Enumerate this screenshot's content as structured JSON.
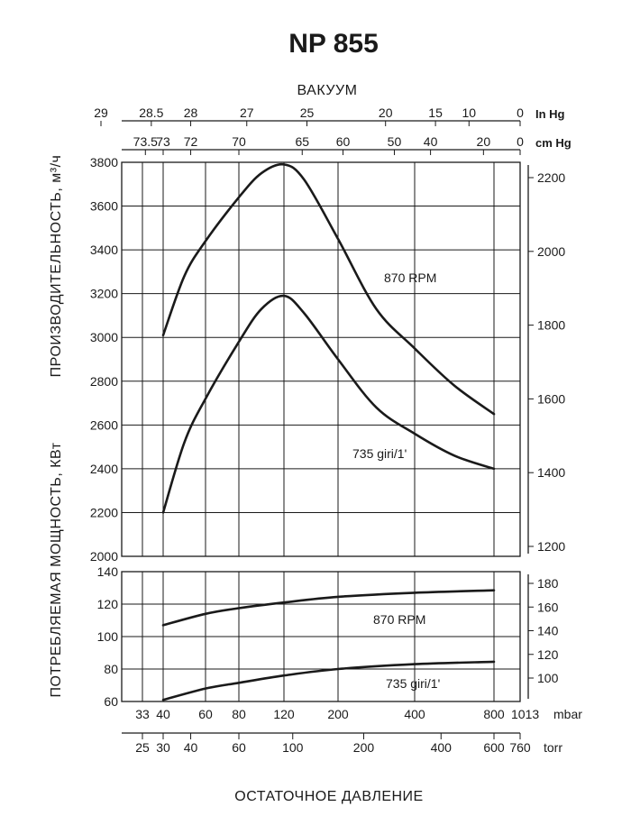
{
  "chart_data": [
    {
      "type": "line",
      "panel": "capacity",
      "title": "NP 855",
      "top_label": "ВАКУУМ",
      "ylabel": "ПРОИЗВОДИТЕЛЬНОСТЬ, м³/ч",
      "ylim": [
        2000,
        3800
      ],
      "yticks": [
        2000,
        2200,
        2400,
        2600,
        2800,
        3000,
        3200,
        3400,
        3600,
        3800
      ],
      "y2ticks": [
        "1200",
        "1400",
        "1600",
        "1800",
        "2000",
        "2200"
      ],
      "y2_values": [
        1200,
        1400,
        1600,
        1800,
        2000,
        2200
      ],
      "vacuum_inhg": {
        "unit": "In Hg",
        "ticks": [
          {
            "label": "29",
            "mbar": 19
          },
          {
            "label": "28.5",
            "mbar": 36
          },
          {
            "label": "28",
            "mbar": 53
          },
          {
            "label": "27",
            "mbar": 87
          },
          {
            "label": "25",
            "mbar": 154
          },
          {
            "label": "20",
            "mbar": 324
          },
          {
            "label": "15",
            "mbar": 505
          },
          {
            "label": "10",
            "mbar": 674
          },
          {
            "label": "0",
            "mbar": 1013
          }
        ]
      },
      "vacuum_cmhg": {
        "unit": "cm Hg",
        "ticks": [
          {
            "label": "73.5",
            "mbar": 34
          },
          {
            "label": "73",
            "mbar": 40
          },
          {
            "label": "72",
            "mbar": 53
          },
          {
            "label": "70",
            "mbar": 80
          },
          {
            "label": "65",
            "mbar": 147
          },
          {
            "label": "60",
            "mbar": 213
          },
          {
            "label": "50",
            "mbar": 347
          },
          {
            "label": "40",
            "mbar": 480
          },
          {
            "label": "20",
            "mbar": 747
          },
          {
            "label": "0",
            "mbar": 1013
          }
        ]
      },
      "gridlines_mbar": [
        33,
        40,
        60,
        80,
        120,
        200,
        400,
        800
      ],
      "series": [
        {
          "name": "870 RPM",
          "x": [
            40,
            50,
            60,
            80,
            100,
            120,
            150,
            200,
            300,
            400,
            600,
            800
          ],
          "values": [
            3010,
            3280,
            3440,
            3640,
            3750,
            3790,
            3720,
            3450,
            3130,
            2950,
            2780,
            2650
          ]
        },
        {
          "name": "735 giri/1'",
          "x": [
            40,
            50,
            60,
            80,
            100,
            120,
            150,
            200,
            300,
            400,
            600,
            800
          ],
          "values": [
            2200,
            2520,
            2720,
            2980,
            3130,
            3190,
            3110,
            2900,
            2680,
            2560,
            2460,
            2400
          ]
        }
      ]
    },
    {
      "type": "line",
      "panel": "power",
      "ylabel": "ПОТРЕБЛЯЕМАЯ МОЩНОСТЬ, КВт",
      "ylim": [
        60,
        140
      ],
      "yticks": [
        60,
        80,
        100,
        120,
        140
      ],
      "y2ticks": [
        "100",
        "120",
        "140",
        "160",
        "180"
      ],
      "y2_values": [
        100,
        120,
        140,
        160,
        180
      ],
      "x_mbar": {
        "unit": "mbar",
        "ticks": [
          {
            "label": "33",
            "mbar": 33
          },
          {
            "label": "40",
            "mbar": 40
          },
          {
            "label": "60",
            "mbar": 60
          },
          {
            "label": "80",
            "mbar": 80
          },
          {
            "label": "120",
            "mbar": 120
          },
          {
            "label": "200",
            "mbar": 200
          },
          {
            "label": "400",
            "mbar": 400
          },
          {
            "label": "800",
            "mbar": 800
          },
          {
            "label": "1013",
            "mbar": 1013
          }
        ]
      },
      "x_torr": {
        "unit": "torr",
        "ticks": [
          {
            "label": "25",
            "mbar": 33
          },
          {
            "label": "30",
            "mbar": 40
          },
          {
            "label": "40",
            "mbar": 53
          },
          {
            "label": "60",
            "mbar": 80
          },
          {
            "label": "100",
            "mbar": 133
          },
          {
            "label": "200",
            "mbar": 267
          },
          {
            "label": "400",
            "mbar": 533
          },
          {
            "label": "600",
            "mbar": 800
          },
          {
            "label": "760",
            "mbar": 1013
          }
        ]
      },
      "xlabel": "ОСТАТОЧНОЕ ДАВЛЕНИЕ",
      "gridlines_mbar": [
        33,
        40,
        60,
        80,
        120,
        200,
        400,
        800
      ],
      "series": [
        {
          "name": "870 RPM",
          "x": [
            40,
            60,
            80,
            120,
            200,
            400,
            800
          ],
          "values": [
            107,
            114,
            117.5,
            121,
            124.5,
            127,
            128.5
          ]
        },
        {
          "name": "735 giri/1'",
          "x": [
            40,
            60,
            80,
            120,
            200,
            400,
            800
          ],
          "values": [
            61,
            68,
            71.5,
            76,
            80,
            83,
            84.5
          ]
        }
      ]
    }
  ]
}
